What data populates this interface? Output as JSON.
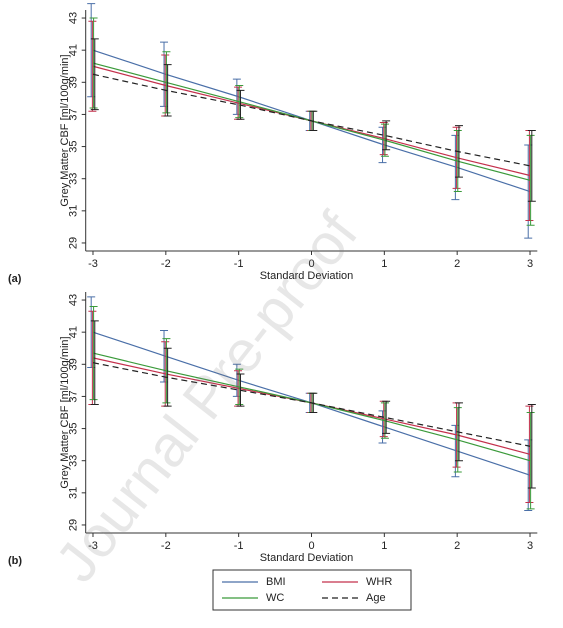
{
  "chart_data": [
    {
      "type": "line",
      "panel_label": "(a)",
      "xlabel": "Standard Deviation",
      "ylabel": "Grey Matter CBF [ml/100g/min]",
      "x": [
        -3,
        -2,
        -1,
        0,
        1,
        2,
        3
      ],
      "xlim": [
        -3.1,
        3.1
      ],
      "xticks": [
        -3,
        -2,
        -1,
        0,
        1,
        2,
        3
      ],
      "ylim": [
        28.5,
        43.5
      ],
      "yticks": [
        29,
        31,
        33,
        35,
        37,
        39,
        41,
        43
      ],
      "series": [
        {
          "name": "BMI",
          "color": "#4a6fa8",
          "dash": false,
          "values": [
            41.0,
            39.5,
            38.1,
            36.6,
            35.1,
            33.7,
            32.2
          ],
          "errors": [
            2.9,
            2.0,
            1.1,
            0.6,
            1.1,
            2.0,
            2.9
          ]
        },
        {
          "name": "WHR",
          "color": "#c4304c",
          "dash": false,
          "values": [
            40.0,
            38.8,
            37.7,
            36.6,
            35.5,
            34.3,
            33.2
          ],
          "errors": [
            2.8,
            1.9,
            1.0,
            0.6,
            1.0,
            1.9,
            2.8
          ]
        },
        {
          "name": "WC",
          "color": "#3a9a3a",
          "dash": false,
          "values": [
            40.2,
            39.0,
            37.8,
            36.6,
            35.4,
            34.1,
            32.9
          ],
          "errors": [
            2.8,
            1.9,
            1.0,
            0.6,
            1.0,
            1.9,
            2.8
          ]
        },
        {
          "name": "Age",
          "color": "#222222",
          "dash": true,
          "values": [
            39.5,
            38.5,
            37.6,
            36.6,
            35.7,
            34.7,
            33.8
          ],
          "errors": [
            2.2,
            1.6,
            0.9,
            0.6,
            0.9,
            1.6,
            2.2
          ]
        }
      ]
    },
    {
      "type": "line",
      "panel_label": "(b)",
      "xlabel": "Standard Deviation",
      "ylabel": "Grey Matter CBF [ml/100g/min]",
      "x": [
        -3,
        -2,
        -1,
        0,
        1,
        2,
        3
      ],
      "xlim": [
        -3.1,
        3.1
      ],
      "xticks": [
        -3,
        -2,
        -1,
        0,
        1,
        2,
        3
      ],
      "ylim": [
        28.5,
        43.5
      ],
      "yticks": [
        29,
        31,
        33,
        35,
        37,
        39,
        41,
        43
      ],
      "series": [
        {
          "color": "#4a6fa8",
          "dash": false,
          "values": [
            41.0,
            39.5,
            38.0,
            36.6,
            35.1,
            33.6,
            32.1
          ],
          "errors": [
            2.2,
            1.6,
            1.0,
            0.6,
            1.0,
            1.6,
            2.2
          ]
        },
        {
          "color": "#c4304c",
          "dash": false,
          "values": [
            39.4,
            38.4,
            37.5,
            36.6,
            35.6,
            34.6,
            33.4
          ],
          "errors": [
            2.9,
            2.0,
            1.1,
            0.6,
            1.1,
            2.0,
            3.0
          ]
        },
        {
          "color": "#3a9a3a",
          "dash": false,
          "values": [
            39.7,
            38.6,
            37.6,
            36.6,
            35.5,
            34.3,
            33.0
          ],
          "errors": [
            2.9,
            2.0,
            1.1,
            0.6,
            1.1,
            2.0,
            3.0
          ]
        },
        {
          "color": "#222222",
          "dash": true,
          "values": [
            39.1,
            38.2,
            37.4,
            36.6,
            35.7,
            34.8,
            33.9
          ],
          "errors": [
            2.6,
            1.8,
            1.0,
            0.6,
            1.0,
            1.8,
            2.6
          ]
        }
      ]
    }
  ],
  "watermark": "Journal Pre-proof"
}
